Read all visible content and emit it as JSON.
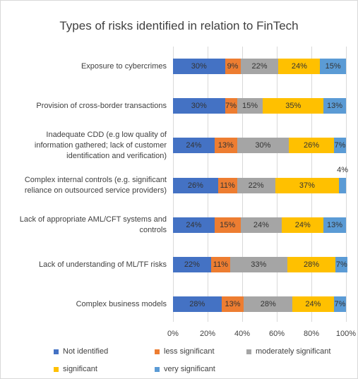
{
  "chart_data": {
    "type": "bar",
    "orientation": "horizontal",
    "stacked": true,
    "title": "Types of risks identified in relation to FinTech",
    "categories": [
      "Exposure to cybercrimes",
      "Provision of cross-border transactions",
      "Inadequate CDD (e.g low quality of information gathered; lack of customer identification and verification)",
      "Complex internal controls (e.g. significant reliance on outsourced service providers)",
      "Lack of appropriate AML/CFT systems and controls",
      "Lack of understanding of ML/TF risks",
      "Complex business models"
    ],
    "series": [
      {
        "name": "Not identified",
        "color": "#4472c4",
        "values": [
          30,
          30,
          24,
          26,
          24,
          22,
          28
        ],
        "value_labels": [
          "30%",
          "30%",
          "24%",
          "26%",
          "24%",
          "22%",
          "28%"
        ]
      },
      {
        "name": "less significant",
        "color": "#ed7d31",
        "values": [
          9,
          7,
          13,
          11,
          15,
          11,
          13
        ],
        "value_labels": [
          "9%",
          "7%",
          "13%",
          "11%",
          "15%",
          "11%",
          "13%"
        ]
      },
      {
        "name": "moderately significant",
        "color": "#a5a5a5",
        "values": [
          22,
          15,
          30,
          22,
          24,
          33,
          28
        ],
        "value_labels": [
          "22%",
          "15%",
          "30%",
          "22%",
          "24%",
          "33%",
          "28%"
        ]
      },
      {
        "name": "significant",
        "color": "#ffc000",
        "values": [
          24,
          35,
          26,
          37,
          24,
          28,
          24
        ],
        "value_labels": [
          "24%",
          "35%",
          "26%",
          "37%",
          "24%",
          "28%",
          "24%"
        ]
      },
      {
        "name": "very significant",
        "color": "#5b9bd5",
        "values": [
          15,
          13,
          7,
          4,
          13,
          7,
          7
        ],
        "value_labels": [
          "15%",
          "13%",
          "7%",
          "4%",
          "13%",
          "7%",
          "7%"
        ]
      }
    ],
    "xlim": [
      0,
      100
    ],
    "xticks": [
      {
        "value": 0,
        "label": "0%"
      },
      {
        "value": 20,
        "label": "20%"
      },
      {
        "value": 40,
        "label": "40%"
      },
      {
        "value": 60,
        "label": "60%"
      },
      {
        "value": 80,
        "label": "80%"
      },
      {
        "value": 100,
        "label": "100%"
      }
    ],
    "grid": true,
    "legend": "bottom"
  }
}
